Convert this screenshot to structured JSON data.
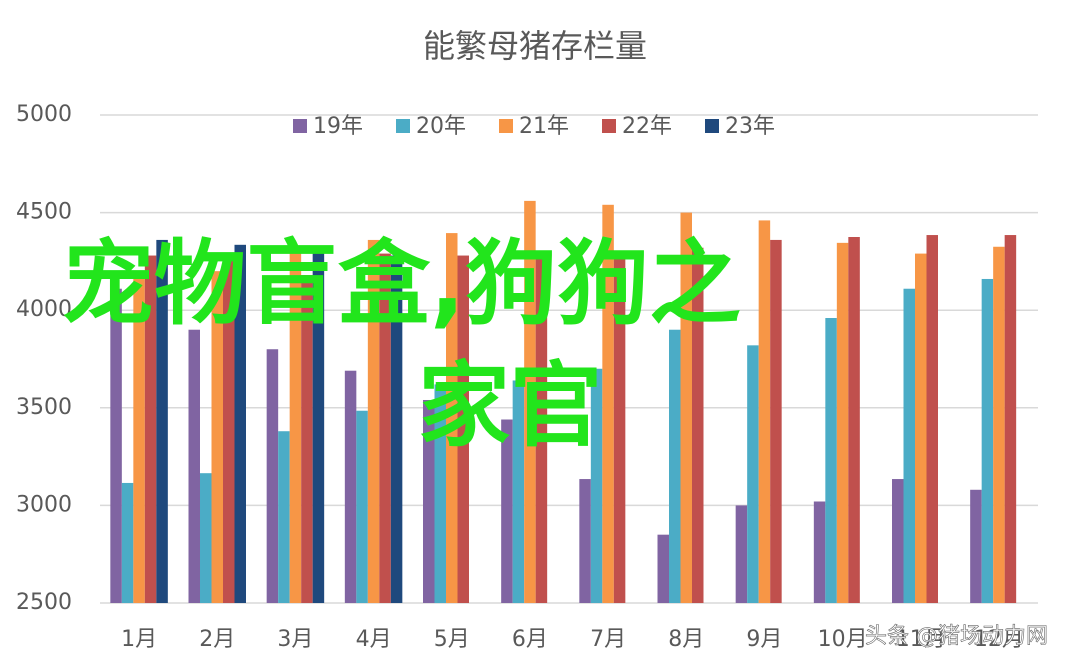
{
  "chart_data": {
    "type": "bar",
    "title": "能繁母猪存栏量",
    "categories": [
      "1月",
      "2月",
      "3月",
      "4月",
      "5月",
      "6月",
      "7月",
      "8月",
      "9月",
      "10月",
      "11月",
      "12月"
    ],
    "series": [
      {
        "name": "19年",
        "color": "#8064a2",
        "values": [
          4110,
          3900,
          3800,
          3690,
          3540,
          3440,
          3135,
          2850,
          3000,
          3020,
          3135,
          3080
        ]
      },
      {
        "name": "20年",
        "color": "#4bacc6",
        "values": [
          3115,
          3165,
          3380,
          3485,
          3620,
          3640,
          3700,
          3900,
          3820,
          3960,
          4110,
          4160
        ]
      },
      {
        "name": "21年",
        "color": "#f79646",
        "values": [
          4200,
          4200,
          4310,
          4360,
          4395,
          4560,
          4540,
          4500,
          4460,
          4345,
          4290,
          4325
        ]
      },
      {
        "name": "22年",
        "color": "#c0504d",
        "values": [
          4280,
          4260,
          4180,
          4290,
          4280,
          4270,
          4290,
          4320,
          4360,
          4375,
          4385,
          4385
        ]
      },
      {
        "name": "23年",
        "color": "#1f497d",
        "values": [
          4360,
          4335,
          4300,
          4280,
          null,
          null,
          null,
          null,
          null,
          null,
          null,
          null
        ]
      }
    ],
    "ylim": [
      2500,
      5000
    ],
    "yticks": [
      2500,
      3000,
      3500,
      4000,
      4500,
      5000
    ],
    "grid": true,
    "legend": "top",
    "overlay_text": [
      "宠物盲盒,狗狗之",
      "家官"
    ],
    "watermark": "头条 @猪场动力网"
  }
}
